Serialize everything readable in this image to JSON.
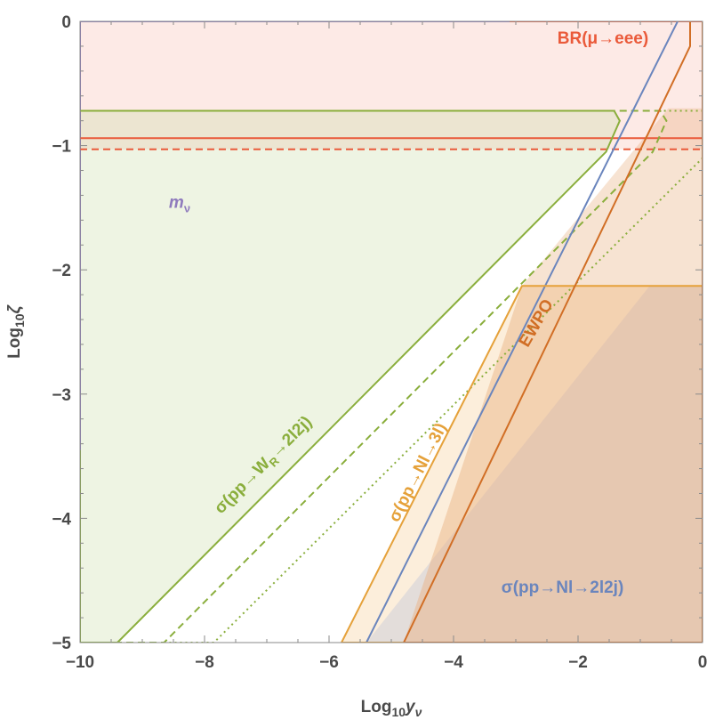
{
  "chart_data": {
    "type": "area",
    "xlim": [
      -10,
      0
    ],
    "ylim": [
      -5,
      0
    ],
    "x_ticks": [
      -10,
      -8,
      -6,
      -4,
      -2,
      0
    ],
    "y_ticks": [
      0,
      -1,
      -2,
      -3,
      -4,
      -5
    ],
    "x_tick_labels": [
      "−10",
      "−8",
      "−6",
      "−4",
      "−2",
      "0"
    ],
    "y_tick_labels": [
      "0",
      "−1",
      "−2",
      "−3",
      "−4",
      "−5"
    ],
    "xlabel": {
      "base": "Log",
      "sub": "10",
      "var": "y",
      "varsub": "ν"
    },
    "ylabel": {
      "base": "Log",
      "sub": "10",
      "var": "ζ"
    },
    "grid": false,
    "regions": [
      {
        "id": "mnu",
        "label": "m",
        "label_sub": "ν",
        "color": "#8f7bbd",
        "fill": "#8f7bbd",
        "fill_opacity": 0.18,
        "boundary": [
          [
            -10,
            -3.45
          ],
          [
            -10,
            0
          ],
          [
            -3.1,
            0
          ]
        ]
      },
      {
        "id": "br-mueee",
        "label": "BR(μ→eee)",
        "color": "#ea5a3a",
        "fill": "#f5a08f",
        "fill_opacity": 0.22,
        "boundary_solid": [
          [
            -10,
            -0.94
          ],
          [
            0,
            -0.94
          ]
        ],
        "boundary_dashed": [
          [
            -10,
            -1.03
          ],
          [
            0,
            -1.03
          ]
        ]
      },
      {
        "id": "wr",
        "label": "σ(pp→W",
        "label_sub": "R",
        "label_end": "→2l2j)",
        "color": "#8aae3c",
        "fill": "#c8d9a2",
        "fill_opacity": 0.22,
        "boundary_solid": [
          [
            -10,
            -3.45
          ],
          [
            -10,
            -5
          ],
          [
            -9.4,
            -5
          ],
          [
            -1.55,
            -1.05
          ],
          [
            -1.33,
            -0.8
          ],
          [
            -1.42,
            -0.72
          ],
          [
            -10,
            -0.72
          ]
        ],
        "boundary_dashed": [
          [
            -10,
            -5
          ],
          [
            -8.65,
            -5
          ],
          [
            -0.8,
            -1.05
          ],
          [
            -0.58,
            -0.8
          ],
          [
            -0.68,
            -0.72
          ],
          [
            -1.6,
            -0.72
          ]
        ],
        "boundary_dotted": [
          [
            -8.65,
            -5
          ],
          [
            -7.85,
            -5
          ],
          [
            0,
            -1.1
          ],
          [
            0,
            -0.72
          ],
          [
            -0.68,
            -0.72
          ]
        ]
      },
      {
        "id": "nl3l",
        "label": "σ(pp→Nl→3l)",
        "color": "#e5a13a",
        "fill": "#f5c889",
        "fill_opacity": 0.22,
        "boundary": [
          [
            -5.8,
            -5
          ],
          [
            -2.9,
            -2.13
          ],
          [
            0,
            -2.13
          ],
          [
            0,
            -5
          ],
          [
            -5.8,
            -5
          ]
        ]
      },
      {
        "id": "ewpo",
        "label": "EWPO",
        "color": "#d16e25",
        "fill": "#e8b07e",
        "fill_opacity": 0.25,
        "boundary": [
          [
            -4.8,
            -5
          ],
          [
            -0.2,
            -0.2
          ],
          [
            -0.2,
            0
          ],
          [
            0,
            0
          ],
          [
            0,
            -5
          ]
        ]
      },
      {
        "id": "nl2l2j",
        "label": "σ(pp→Nl→2l2j)",
        "color": "#6a85bd",
        "fill": "#a8b6d6",
        "fill_opacity": 0.2,
        "boundary": [
          [
            -5.4,
            -5
          ],
          [
            0,
            0.4
          ]
        ]
      }
    ],
    "labels": [
      {
        "region": "br-mueee",
        "text": "BR(μ→eee)",
        "x": -1.6,
        "y": -0.18,
        "rotate": 0
      },
      {
        "region": "mnu",
        "text": "m",
        "sub": "ν",
        "x": -8.4,
        "y": -1.5,
        "rotate": 0
      },
      {
        "region": "wr",
        "text": "σ(pp→W",
        "sub": "R",
        "tail": "→2l2j)",
        "x": -7.0,
        "y": -3.6,
        "rotate": -45
      },
      {
        "region": "nl3l",
        "text": "σ(pp→Nl→3l)",
        "x": -4.5,
        "y": -3.65,
        "rotate": -63
      },
      {
        "region": "ewpo",
        "text": "EWPO",
        "x": -2.6,
        "y": -2.45,
        "rotate": -60
      },
      {
        "region": "nl2l2j",
        "text": "σ(pp→Nl→2l2j)",
        "x": -2.25,
        "y": -4.6,
        "rotate": 0
      }
    ]
  }
}
